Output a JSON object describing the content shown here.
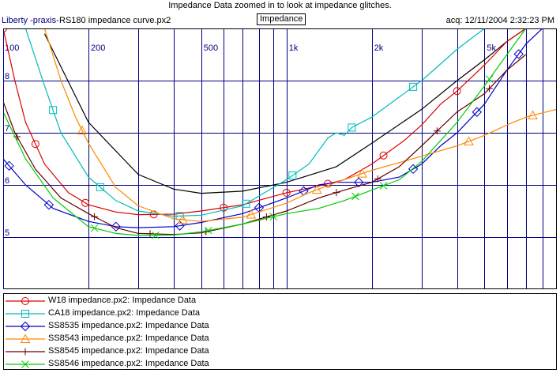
{
  "title": "Impedance Data zoomed in to look at impedance glitches.",
  "source": "Liberty -praxis-",
  "file_name": "RS180 impedance curve.px2",
  "mode_label": "Impedance",
  "acquired": "acq: 12/11/2004 2:32:23 PM",
  "chart_data": {
    "type": "line",
    "xscale": "log",
    "xlim": [
      100,
      9000
    ],
    "ylim": [
      4.0,
      9.0
    ],
    "x_tick_labels": [
      {
        "f": 100,
        "label": "100"
      },
      {
        "f": 200,
        "label": "200"
      },
      {
        "f": 500,
        "label": "500"
      },
      {
        "f": 1000,
        "label": "1k"
      },
      {
        "f": 2000,
        "label": "2k"
      },
      {
        "f": 5000,
        "label": "5k"
      }
    ],
    "y_tick_labels": [
      {
        "v": 5,
        "label": "5"
      },
      {
        "v": 6,
        "label": "6"
      },
      {
        "v": 7,
        "label": "7"
      },
      {
        "v": 8,
        "label": "8"
      }
    ],
    "series": [
      {
        "name": "",
        "color": "#000000",
        "marker": "none",
        "points": [
          [
            140,
            8.9
          ],
          [
            200,
            7.2
          ],
          [
            300,
            6.2
          ],
          [
            400,
            5.92
          ],
          [
            500,
            5.84
          ],
          [
            700,
            5.88
          ],
          [
            1000,
            6.05
          ],
          [
            1500,
            6.35
          ],
          [
            2000,
            6.8
          ],
          [
            3000,
            7.45
          ],
          [
            4000,
            8.0
          ],
          [
            5000,
            8.4
          ],
          [
            6000,
            8.75
          ],
          [
            7000,
            9.0
          ]
        ]
      },
      {
        "name": "W18 impedance.px2:  Impedance Data",
        "color": "#dd0000",
        "marker": "circle",
        "points": [
          [
            100,
            9.0
          ],
          [
            110,
            8.0
          ],
          [
            120,
            7.2
          ],
          [
            140,
            6.4
          ],
          [
            170,
            5.85
          ],
          [
            200,
            5.62
          ],
          [
            250,
            5.48
          ],
          [
            300,
            5.43
          ],
          [
            400,
            5.44
          ],
          [
            500,
            5.5
          ],
          [
            700,
            5.62
          ],
          [
            1000,
            5.85
          ],
          [
            1300,
            5.98
          ],
          [
            1600,
            6.1
          ],
          [
            2000,
            6.4
          ],
          [
            2600,
            6.85
          ],
          [
            3000,
            7.15
          ],
          [
            3500,
            7.55
          ],
          [
            4000,
            7.8
          ],
          [
            5000,
            8.3
          ],
          [
            6000,
            8.75
          ],
          [
            7000,
            9.0
          ]
        ],
        "marker_f": [
          100,
          130,
          195,
          340,
          600,
          1000,
          1400,
          2200,
          4000
        ]
      },
      {
        "name": "CA18 impedance.px2:  Impedance Data",
        "color": "#00bbbb",
        "marker": "square",
        "points": [
          [
            120,
            9.0
          ],
          [
            140,
            7.9
          ],
          [
            160,
            7.0
          ],
          [
            200,
            6.15
          ],
          [
            250,
            5.7
          ],
          [
            300,
            5.5
          ],
          [
            400,
            5.4
          ],
          [
            500,
            5.42
          ],
          [
            700,
            5.6
          ],
          [
            1000,
            6.1
          ],
          [
            1200,
            6.4
          ],
          [
            1400,
            6.9
          ],
          [
            1500,
            7.0
          ],
          [
            1600,
            6.95
          ],
          [
            1700,
            7.1
          ],
          [
            2000,
            7.3
          ],
          [
            3000,
            8.0
          ],
          [
            4000,
            8.6
          ],
          [
            5000,
            9.0
          ]
        ],
        "marker_f": [
          150,
          220,
          420,
          720,
          1050,
          1700,
          2800
        ]
      },
      {
        "name": "SS8535 impedance.px2:  Impedance Data",
        "color": "#0000cc",
        "marker": "diamond",
        "points": [
          [
            100,
            6.5
          ],
          [
            120,
            6.0
          ],
          [
            150,
            5.55
          ],
          [
            200,
            5.3
          ],
          [
            250,
            5.2
          ],
          [
            300,
            5.18
          ],
          [
            400,
            5.2
          ],
          [
            500,
            5.28
          ],
          [
            700,
            5.45
          ],
          [
            1000,
            5.75
          ],
          [
            1300,
            6.0
          ],
          [
            1500,
            6.05
          ],
          [
            2000,
            6.05
          ],
          [
            2500,
            6.15
          ],
          [
            3000,
            6.4
          ],
          [
            3500,
            6.75
          ],
          [
            4000,
            7.0
          ],
          [
            5000,
            7.55
          ],
          [
            6000,
            8.2
          ],
          [
            7000,
            8.7
          ],
          [
            8000,
            9.0
          ]
        ],
        "marker_f": [
          105,
          145,
          250,
          420,
          800,
          1150,
          1800,
          2800,
          4700,
          6600
        ]
      },
      {
        "name": "SS8543 impedance.px2:  Impedance Data",
        "color": "#ff8800",
        "marker": "triangle",
        "points": [
          [
            140,
            9.0
          ],
          [
            160,
            8.0
          ],
          [
            180,
            7.3
          ],
          [
            200,
            6.8
          ],
          [
            250,
            5.95
          ],
          [
            300,
            5.6
          ],
          [
            400,
            5.35
          ],
          [
            500,
            5.3
          ],
          [
            700,
            5.38
          ],
          [
            1000,
            5.65
          ],
          [
            1200,
            5.85
          ],
          [
            1500,
            6.05
          ],
          [
            2000,
            6.28
          ],
          [
            3000,
            6.55
          ],
          [
            4000,
            6.75
          ],
          [
            5000,
            6.95
          ],
          [
            6000,
            7.15
          ],
          [
            7000,
            7.3
          ],
          [
            9000,
            7.45
          ]
        ],
        "marker_f": [
          190,
          430,
          750,
          1280,
          1850,
          4400,
          7400
        ]
      },
      {
        "name": "SS8545 impedance.px2:  Impedance Data",
        "color": "#660000",
        "marker": "plus",
        "points": [
          [
            100,
            7.6
          ],
          [
            110,
            7.0
          ],
          [
            130,
            6.3
          ],
          [
            160,
            5.75
          ],
          [
            200,
            5.45
          ],
          [
            250,
            5.18
          ],
          [
            300,
            5.07
          ],
          [
            400,
            5.05
          ],
          [
            500,
            5.08
          ],
          [
            700,
            5.25
          ],
          [
            1000,
            5.5
          ],
          [
            1300,
            5.75
          ],
          [
            1600,
            5.9
          ],
          [
            2000,
            6.05
          ],
          [
            2500,
            6.35
          ],
          [
            3000,
            6.75
          ],
          [
            3500,
            7.1
          ],
          [
            4000,
            7.4
          ],
          [
            5000,
            7.75
          ],
          [
            6000,
            8.2
          ],
          [
            7000,
            8.5
          ]
        ],
        "marker_f": [
          112,
          210,
          330,
          520,
          850,
          1500,
          2100,
          3400,
          5200
        ]
      },
      {
        "name": "SS8546 impedance.px2:  Impedance Data",
        "color": "#00cc00",
        "marker": "x",
        "points": [
          [
            100,
            7.4
          ],
          [
            120,
            6.5
          ],
          [
            150,
            5.75
          ],
          [
            180,
            5.4
          ],
          [
            200,
            5.2
          ],
          [
            250,
            5.07
          ],
          [
            300,
            5.03
          ],
          [
            400,
            5.04
          ],
          [
            500,
            5.1
          ],
          [
            700,
            5.25
          ],
          [
            1000,
            5.45
          ],
          [
            1300,
            5.55
          ],
          [
            1600,
            5.7
          ],
          [
            2000,
            5.9
          ],
          [
            2500,
            6.1
          ],
          [
            3000,
            6.45
          ],
          [
            4000,
            7.2
          ],
          [
            5000,
            7.9
          ],
          [
            6000,
            8.5
          ],
          [
            7000,
            9.0
          ]
        ],
        "marker_f": [
          210,
          345,
          530,
          900,
          1750,
          2200,
          5200
        ]
      }
    ]
  }
}
